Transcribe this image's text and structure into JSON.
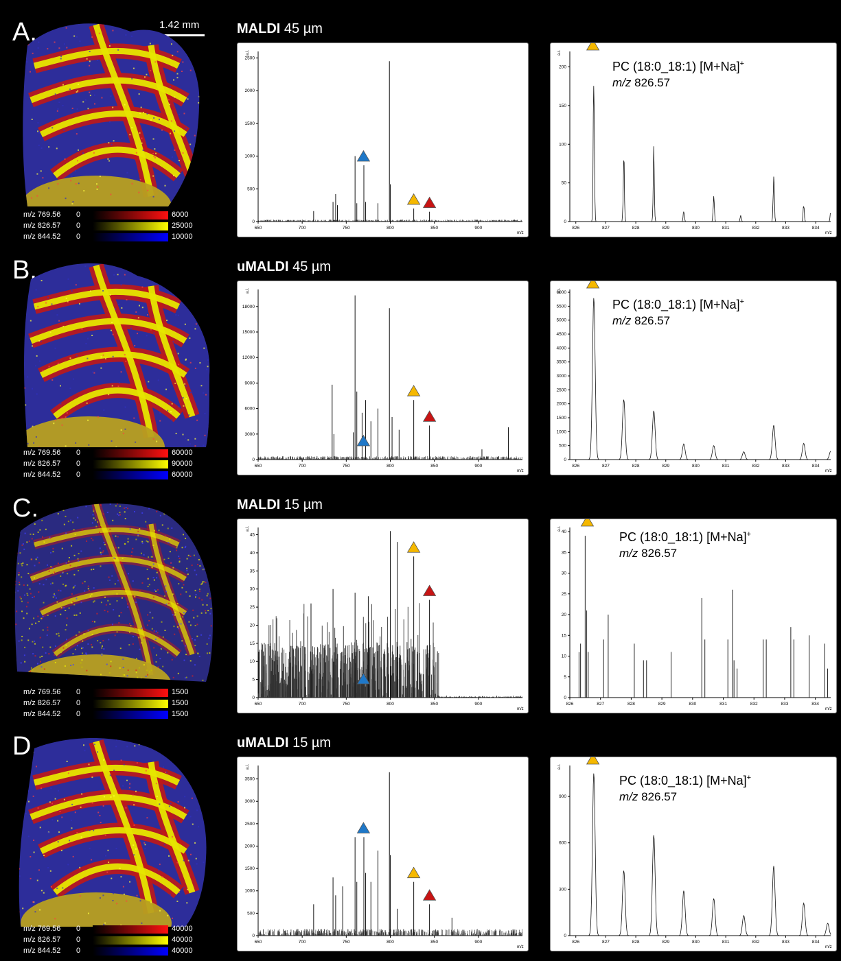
{
  "scale_bar_label": "1.42 mm",
  "legend_labels": [
    "m/z 769.56",
    "m/z 826.57",
    "m/z 844.52"
  ],
  "colors": {
    "red": "#e01010",
    "yellow": "#f0f000",
    "blue": "#1010f0",
    "background": "#000000",
    "tri_blue": "#1f78c8",
    "tri_yellow": "#f5b800",
    "tri_red": "#c81414"
  },
  "annotation": {
    "compound": "PC (18:0_18:1) [M+Na]",
    "superscript": "+",
    "mz_prefix": "m/z",
    "mz_value": "826.57"
  },
  "rows": [
    {
      "letter": "A.",
      "method": "MALDI",
      "resolution": "45 µm",
      "legend_min": [
        "0",
        "0",
        "0"
      ],
      "legend_max": [
        "6000",
        "25000",
        "10000"
      ]
    },
    {
      "letter": "B.",
      "method": "uMALDI",
      "resolution": "45 µm",
      "legend_min": [
        "0",
        "0",
        "0"
      ],
      "legend_max": [
        "60000",
        "90000",
        "60000"
      ]
    },
    {
      "letter": "C.",
      "method": "MALDI",
      "resolution": "15 µm",
      "legend_min": [
        "0",
        "0",
        "0"
      ],
      "legend_max": [
        "1500",
        "1500",
        "1500"
      ]
    },
    {
      "letter": "D.",
      "method": "uMALDI",
      "resolution": "15 µm",
      "legend_min": [
        "0",
        "0",
        "0"
      ],
      "legend_max": [
        "40000",
        "40000",
        "40000"
      ]
    }
  ],
  "chart_data": [
    {
      "type": "line",
      "panel": "A-overview",
      "ylabel": "a.i.",
      "xlabel": "m/z",
      "xlim": [
        650,
        950
      ],
      "ylim": [
        0,
        2600
      ],
      "yticks": [
        0,
        500,
        1000,
        1500,
        2000,
        2500
      ],
      "xticks": [
        650,
        700,
        750,
        800,
        850,
        900
      ],
      "peaks": [
        [
          713,
          160
        ],
        [
          735,
          300
        ],
        [
          738,
          420
        ],
        [
          740,
          250
        ],
        [
          760,
          1000
        ],
        [
          762,
          280
        ],
        [
          770,
          860
        ],
        [
          772,
          300
        ],
        [
          786,
          280
        ],
        [
          799,
          2450
        ],
        [
          800,
          570
        ],
        [
          826.6,
          200
        ],
        [
          844.5,
          150
        ]
      ],
      "noise": 30,
      "markers": [
        {
          "color": "blue",
          "mz": 769.56
        },
        {
          "color": "yellow",
          "mz": 826.57
        },
        {
          "color": "red",
          "mz": 844.52
        }
      ]
    },
    {
      "type": "line",
      "panel": "A-zoom",
      "ylabel": "a.i.",
      "xlabel": "m/z",
      "xlim": [
        825.8,
        834.5
      ],
      "ylim": [
        0,
        220
      ],
      "yticks": [
        0,
        50,
        100,
        150,
        200
      ],
      "xticks": [
        826,
        827,
        828,
        829,
        830,
        831,
        832,
        833,
        834
      ],
      "peaks": [
        [
          826.6,
          205
        ],
        [
          827.6,
          88
        ],
        [
          828.6,
          85
        ],
        [
          829.6,
          15
        ],
        [
          830.6,
          35
        ],
        [
          831.5,
          8
        ],
        [
          832.6,
          60
        ],
        [
          833.6,
          22
        ],
        [
          834.5,
          12
        ]
      ],
      "noise": 0,
      "shape": "jagged",
      "markers": [
        {
          "color": "yellow",
          "mz": 826.57
        }
      ]
    },
    {
      "type": "line",
      "panel": "B-overview",
      "ylabel": "a.i.",
      "xlabel": "m/z",
      "xlim": [
        650,
        950
      ],
      "ylim": [
        0,
        20000
      ],
      "yticks": [
        0,
        3000,
        6000,
        9000,
        12000,
        15000,
        18000
      ],
      "xticks": [
        650,
        700,
        750,
        800,
        850,
        900
      ],
      "peaks": [
        [
          734,
          8800
        ],
        [
          736,
          3000
        ],
        [
          758,
          3200
        ],
        [
          760,
          19300
        ],
        [
          762,
          8000
        ],
        [
          768,
          5500
        ],
        [
          772,
          7000
        ],
        [
          778,
          4500
        ],
        [
          786,
          6000
        ],
        [
          799,
          17800
        ],
        [
          802,
          5000
        ],
        [
          810,
          3500
        ],
        [
          826.6,
          7000
        ],
        [
          844.5,
          4000
        ],
        [
          904,
          1200
        ],
        [
          934,
          3800
        ]
      ],
      "noise": 400,
      "markers": [
        {
          "color": "blue",
          "mz": 769.56
        },
        {
          "color": "yellow",
          "mz": 826.57
        },
        {
          "color": "red",
          "mz": 844.52
        }
      ]
    },
    {
      "type": "line",
      "panel": "B-zoom",
      "ylabel": "a.i.",
      "xlabel": "m/z",
      "xlim": [
        825.8,
        834.5
      ],
      "ylim": [
        0,
        6100
      ],
      "yticks": [
        0,
        500,
        1000,
        1500,
        2000,
        2500,
        3000,
        3500,
        4000,
        4500,
        5000,
        5500,
        6000
      ],
      "xticks": [
        826,
        827,
        828,
        829,
        830,
        831,
        832,
        833,
        834
      ],
      "peaks": [
        [
          826.6,
          5800
        ],
        [
          827.6,
          2150
        ],
        [
          828.6,
          1750
        ],
        [
          829.6,
          560
        ],
        [
          830.6,
          500
        ],
        [
          831.6,
          280
        ],
        [
          832.6,
          1230
        ],
        [
          833.6,
          580
        ],
        [
          834.5,
          300
        ]
      ],
      "noise": 0,
      "shape": "smooth",
      "markers": [
        {
          "color": "yellow",
          "mz": 826.57
        }
      ]
    },
    {
      "type": "line",
      "panel": "C-overview",
      "ylabel": "a.i.",
      "xlabel": "m/z",
      "xlim": [
        650,
        950
      ],
      "ylim": [
        0,
        47
      ],
      "yticks": [
        0,
        5,
        10,
        15,
        20,
        25,
        30,
        35,
        40,
        45
      ],
      "xticks": [
        650,
        700,
        750,
        800,
        850,
        900
      ],
      "peaks": [
        [
          800,
          46
        ],
        [
          808,
          43
        ],
        [
          826.6,
          39
        ],
        [
          844.5,
          27
        ],
        [
          735,
          30
        ],
        [
          760,
          29
        ],
        [
          710,
          26
        ],
        [
          775,
          28
        ]
      ],
      "noise": 22,
      "shape": "dense",
      "markers": [
        {
          "color": "blue",
          "mz": 769.56
        },
        {
          "color": "yellow",
          "mz": 826.57
        },
        {
          "color": "red",
          "mz": 844.52
        }
      ]
    },
    {
      "type": "line",
      "panel": "C-zoom",
      "ylabel": "a.i.",
      "xlabel": "m/z",
      "xlim": [
        826,
        834.5
      ],
      "ylim": [
        0,
        41
      ],
      "yticks": [
        0,
        5,
        10,
        15,
        20,
        25,
        30,
        35,
        40
      ],
      "xticks": [
        826,
        827,
        828,
        829,
        830,
        831,
        832,
        833,
        834
      ],
      "peaks": [
        [
          826.3,
          11
        ],
        [
          826.35,
          13
        ],
        [
          826.5,
          39
        ],
        [
          826.55,
          21
        ],
        [
          826.6,
          11
        ],
        [
          827.1,
          14
        ],
        [
          827.25,
          20
        ],
        [
          828.1,
          13
        ],
        [
          828.4,
          9
        ],
        [
          828.5,
          9
        ],
        [
          829.3,
          11
        ],
        [
          830.3,
          24
        ],
        [
          830.4,
          14
        ],
        [
          831.15,
          14
        ],
        [
          831.3,
          26
        ],
        [
          831.35,
          9
        ],
        [
          831.45,
          7
        ],
        [
          832.3,
          14
        ],
        [
          832.4,
          14
        ],
        [
          833.2,
          17
        ],
        [
          833.3,
          14
        ],
        [
          833.8,
          15
        ],
        [
          834.3,
          13
        ],
        [
          834.4,
          7
        ]
      ],
      "noise": 0,
      "shape": "sticks",
      "markers": [
        {
          "color": "yellow",
          "mz": 826.57
        }
      ]
    },
    {
      "type": "line",
      "panel": "D-overview",
      "ylabel": "a.i.",
      "xlabel": "m/z",
      "xlim": [
        650,
        950
      ],
      "ylim": [
        0,
        3800
      ],
      "yticks": [
        0,
        500,
        1000,
        1500,
        2000,
        2500,
        3000,
        3500
      ],
      "xticks": [
        650,
        700,
        750,
        800,
        850,
        900
      ],
      "peaks": [
        [
          713,
          700
        ],
        [
          735,
          1300
        ],
        [
          738,
          900
        ],
        [
          746,
          1100
        ],
        [
          760,
          2200
        ],
        [
          762,
          1200
        ],
        [
          770,
          2200
        ],
        [
          772,
          1400
        ],
        [
          778,
          1200
        ],
        [
          786,
          1900
        ],
        [
          799,
          3650
        ],
        [
          800,
          1800
        ],
        [
          808,
          600
        ],
        [
          826.6,
          1200
        ],
        [
          844.5,
          700
        ],
        [
          870,
          400
        ]
      ],
      "noise": 150,
      "markers": [
        {
          "color": "blue",
          "mz": 769.56
        },
        {
          "color": "yellow",
          "mz": 826.57
        },
        {
          "color": "red",
          "mz": 844.52
        }
      ]
    },
    {
      "type": "line",
      "panel": "D-zoom",
      "ylabel": "a.i.",
      "xlabel": "m/z",
      "xlim": [
        825.8,
        834.5
      ],
      "ylim": [
        0,
        1100
      ],
      "yticks": [
        0,
        300,
        600,
        900
      ],
      "xticks": [
        826,
        827,
        828,
        829,
        830,
        831,
        832,
        833,
        834
      ],
      "peaks": [
        [
          826.6,
          1050
        ],
        [
          827.6,
          420
        ],
        [
          828.6,
          650
        ],
        [
          829.6,
          290
        ],
        [
          830.6,
          240
        ],
        [
          831.6,
          130
        ],
        [
          832.6,
          450
        ],
        [
          833.6,
          210
        ],
        [
          834.4,
          80
        ]
      ],
      "noise": 0,
      "shape": "smooth",
      "markers": [
        {
          "color": "yellow",
          "mz": 826.57
        }
      ]
    }
  ]
}
